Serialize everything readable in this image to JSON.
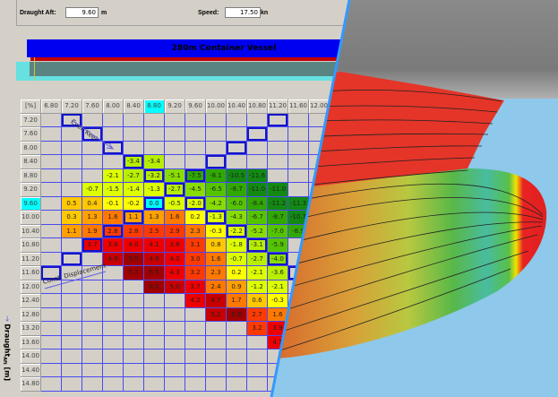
{
  "controls": {
    "draught_aft_label": "Draught Aft:",
    "draught_aft_value": "9.60",
    "draught_aft_unit": "m",
    "speed_label": "Speed:",
    "speed_value": "17.50",
    "speed_unit": "kn"
  },
  "ship": {
    "title": "280m Container Vessel"
  },
  "table": {
    "corner": "[%]",
    "columns": [
      "6.80",
      "7.20",
      "7.60",
      "8.00",
      "8.40",
      "8.80",
      "9.20",
      "9.60",
      "10.00",
      "10.40",
      "10.80",
      "11.20",
      "11.60",
      "12.00"
    ],
    "highlight_column": "8.80",
    "highlight_row": "9.60",
    "rows": [
      {
        "label": "7.20",
        "cells": [
          null,
          null,
          null,
          null,
          null,
          null,
          null,
          null,
          null,
          null,
          null,
          null,
          null,
          null
        ]
      },
      {
        "label": "7.60",
        "cells": [
          null,
          null,
          null,
          null,
          null,
          null,
          null,
          null,
          null,
          null,
          null,
          null,
          null,
          null
        ]
      },
      {
        "label": "8.00",
        "cells": [
          null,
          null,
          null,
          null,
          null,
          null,
          null,
          null,
          null,
          null,
          null,
          null,
          null,
          null
        ]
      },
      {
        "label": "8.40",
        "cells": [
          null,
          null,
          null,
          null,
          "-3.4",
          "-3.4",
          null,
          null,
          null,
          null,
          null,
          null,
          null,
          null
        ]
      },
      {
        "label": "8.80",
        "cells": [
          null,
          null,
          null,
          "-2.1",
          "-2.7",
          "-3.2",
          "-5.1",
          "-7.5",
          "-8.1",
          "-10.5",
          "-11.6",
          null,
          null,
          null
        ]
      },
      {
        "label": "9.20",
        "cells": [
          null,
          null,
          "-0.7",
          "-1.5",
          "-1.4",
          "-1.3",
          "-2.7",
          "-4.5",
          "-6.5",
          "-8.7",
          "-11.0",
          "-11.0",
          null,
          null
        ]
      },
      {
        "label": "9.60",
        "cells": [
          null,
          "0.5",
          "0.4",
          "-0.1",
          "-0.2",
          "0.0",
          "-0.5",
          "-2.0",
          "-4.2",
          "-6.0",
          "-8.4",
          "-11.2",
          "-11.3",
          null
        ]
      },
      {
        "label": "10.00",
        "cells": [
          null,
          "0.3",
          "1.3",
          "1.6",
          "1.1",
          "1.3",
          "1.6",
          "0.2",
          "-1.3",
          "-4.3",
          "-6.7",
          "-8.7",
          "-10.7",
          null
        ]
      },
      {
        "label": "10.40",
        "cells": [
          null,
          "1.1",
          "1.9",
          "2.8",
          "2.8",
          "2.5",
          "2.9",
          "2.3",
          "-0.3",
          "-2.2",
          "-5.2",
          "-7.0",
          "-8.9",
          null
        ]
      },
      {
        "label": "10.80",
        "cells": [
          null,
          null,
          "3.7",
          "3.8",
          "4.0",
          "4.1",
          "3.8",
          "3.1",
          "0.8",
          "-1.8",
          "-3.1",
          "-5.9",
          null,
          null
        ]
      },
      {
        "label": "11.20",
        "cells": [
          null,
          null,
          null,
          "4.9",
          "5.5",
          "4.9",
          "4.0",
          "3.0",
          "1.6",
          "-0.7",
          "-2.7",
          "-4.0",
          null,
          null
        ]
      },
      {
        "label": "11.60",
        "cells": [
          null,
          null,
          null,
          null,
          "5.7",
          "5.5",
          "4.3",
          "3.2",
          "2.3",
          "0.2",
          "-2.1",
          "-3.6",
          null,
          null
        ]
      },
      {
        "label": "12.00",
        "cells": [
          null,
          null,
          null,
          null,
          null,
          "6.0",
          "5.0",
          "3.7",
          "2.4",
          "0.9",
          "-1.2",
          "-2.1",
          null,
          null
        ]
      },
      {
        "label": "12.40",
        "cells": [
          null,
          null,
          null,
          null,
          null,
          null,
          null,
          "4.2",
          "4.7",
          "1.7",
          "0.6",
          "-0.3",
          null,
          null
        ]
      },
      {
        "label": "12.80",
        "cells": [
          null,
          null,
          null,
          null,
          null,
          null,
          null,
          null,
          "5.2",
          "5.8",
          "2.7",
          "1.6",
          null,
          null
        ]
      },
      {
        "label": "13.20",
        "cells": [
          null,
          null,
          null,
          null,
          null,
          null,
          null,
          null,
          null,
          null,
          "3.2",
          "3.9",
          null,
          null
        ]
      },
      {
        "label": "13.60",
        "cells": [
          null,
          null,
          null,
          null,
          null,
          null,
          null,
          null,
          null,
          null,
          null,
          "4.1",
          null,
          null
        ]
      },
      {
        "label": "14.00",
        "cells": [
          null,
          null,
          null,
          null,
          null,
          null,
          null,
          null,
          null,
          null,
          null,
          null,
          null,
          null
        ]
      },
      {
        "label": "14.40",
        "cells": [
          null,
          null,
          null,
          null,
          null,
          null,
          null,
          null,
          null,
          null,
          null,
          null,
          null,
          null
        ]
      },
      {
        "label": "14.80",
        "cells": [
          null,
          null,
          null,
          null,
          null,
          null,
          null,
          null,
          null,
          null,
          null,
          null,
          null,
          null
        ]
      }
    ]
  },
  "annotations": {
    "even_keel": "Even Keel",
    "const_displacement": "Const. Displacement"
  },
  "y_axis_label": "Draught",
  "y_axis_subscript": "Aft",
  "y_axis_unit": "[m]",
  "colors": {
    "grid": "#4a4af0",
    "highlight": "#00ffff",
    "divider": "#3399ff",
    "sky": "#8ec8ea"
  }
}
